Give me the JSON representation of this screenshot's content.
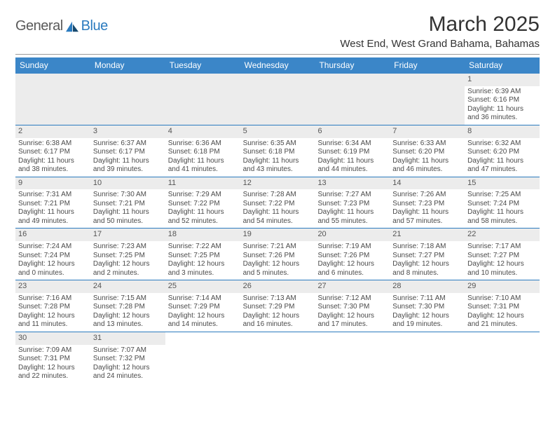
{
  "logo": {
    "text1": "General",
    "text2": "Blue"
  },
  "title": "March 2025",
  "location": "West End, West Grand Bahama, Bahamas",
  "colors": {
    "header_bg": "#3b86c8",
    "header_text": "#ffffff",
    "rule": "#2b7bbf",
    "daynum_bg": "#ececec",
    "logo_gray": "#5a5a5a",
    "logo_blue": "#2b7bbf"
  },
  "weekdays": [
    "Sunday",
    "Monday",
    "Tuesday",
    "Wednesday",
    "Thursday",
    "Friday",
    "Saturday"
  ],
  "leading_blanks": 6,
  "days": [
    {
      "n": 1,
      "sunrise": "6:39 AM",
      "sunset": "6:16 PM",
      "daylight": "11 hours and 36 minutes."
    },
    {
      "n": 2,
      "sunrise": "6:38 AM",
      "sunset": "6:17 PM",
      "daylight": "11 hours and 38 minutes."
    },
    {
      "n": 3,
      "sunrise": "6:37 AM",
      "sunset": "6:17 PM",
      "daylight": "11 hours and 39 minutes."
    },
    {
      "n": 4,
      "sunrise": "6:36 AM",
      "sunset": "6:18 PM",
      "daylight": "11 hours and 41 minutes."
    },
    {
      "n": 5,
      "sunrise": "6:35 AM",
      "sunset": "6:18 PM",
      "daylight": "11 hours and 43 minutes."
    },
    {
      "n": 6,
      "sunrise": "6:34 AM",
      "sunset": "6:19 PM",
      "daylight": "11 hours and 44 minutes."
    },
    {
      "n": 7,
      "sunrise": "6:33 AM",
      "sunset": "6:20 PM",
      "daylight": "11 hours and 46 minutes."
    },
    {
      "n": 8,
      "sunrise": "6:32 AM",
      "sunset": "6:20 PM",
      "daylight": "11 hours and 47 minutes."
    },
    {
      "n": 9,
      "sunrise": "7:31 AM",
      "sunset": "7:21 PM",
      "daylight": "11 hours and 49 minutes."
    },
    {
      "n": 10,
      "sunrise": "7:30 AM",
      "sunset": "7:21 PM",
      "daylight": "11 hours and 50 minutes."
    },
    {
      "n": 11,
      "sunrise": "7:29 AM",
      "sunset": "7:22 PM",
      "daylight": "11 hours and 52 minutes."
    },
    {
      "n": 12,
      "sunrise": "7:28 AM",
      "sunset": "7:22 PM",
      "daylight": "11 hours and 54 minutes."
    },
    {
      "n": 13,
      "sunrise": "7:27 AM",
      "sunset": "7:23 PM",
      "daylight": "11 hours and 55 minutes."
    },
    {
      "n": 14,
      "sunrise": "7:26 AM",
      "sunset": "7:23 PM",
      "daylight": "11 hours and 57 minutes."
    },
    {
      "n": 15,
      "sunrise": "7:25 AM",
      "sunset": "7:24 PM",
      "daylight": "11 hours and 58 minutes."
    },
    {
      "n": 16,
      "sunrise": "7:24 AM",
      "sunset": "7:24 PM",
      "daylight": "12 hours and 0 minutes."
    },
    {
      "n": 17,
      "sunrise": "7:23 AM",
      "sunset": "7:25 PM",
      "daylight": "12 hours and 2 minutes."
    },
    {
      "n": 18,
      "sunrise": "7:22 AM",
      "sunset": "7:25 PM",
      "daylight": "12 hours and 3 minutes."
    },
    {
      "n": 19,
      "sunrise": "7:21 AM",
      "sunset": "7:26 PM",
      "daylight": "12 hours and 5 minutes."
    },
    {
      "n": 20,
      "sunrise": "7:19 AM",
      "sunset": "7:26 PM",
      "daylight": "12 hours and 6 minutes."
    },
    {
      "n": 21,
      "sunrise": "7:18 AM",
      "sunset": "7:27 PM",
      "daylight": "12 hours and 8 minutes."
    },
    {
      "n": 22,
      "sunrise": "7:17 AM",
      "sunset": "7:27 PM",
      "daylight": "12 hours and 10 minutes."
    },
    {
      "n": 23,
      "sunrise": "7:16 AM",
      "sunset": "7:28 PM",
      "daylight": "12 hours and 11 minutes."
    },
    {
      "n": 24,
      "sunrise": "7:15 AM",
      "sunset": "7:28 PM",
      "daylight": "12 hours and 13 minutes."
    },
    {
      "n": 25,
      "sunrise": "7:14 AM",
      "sunset": "7:29 PM",
      "daylight": "12 hours and 14 minutes."
    },
    {
      "n": 26,
      "sunrise": "7:13 AM",
      "sunset": "7:29 PM",
      "daylight": "12 hours and 16 minutes."
    },
    {
      "n": 27,
      "sunrise": "7:12 AM",
      "sunset": "7:30 PM",
      "daylight": "12 hours and 17 minutes."
    },
    {
      "n": 28,
      "sunrise": "7:11 AM",
      "sunset": "7:30 PM",
      "daylight": "12 hours and 19 minutes."
    },
    {
      "n": 29,
      "sunrise": "7:10 AM",
      "sunset": "7:31 PM",
      "daylight": "12 hours and 21 minutes."
    },
    {
      "n": 30,
      "sunrise": "7:09 AM",
      "sunset": "7:31 PM",
      "daylight": "12 hours and 22 minutes."
    },
    {
      "n": 31,
      "sunrise": "7:07 AM",
      "sunset": "7:32 PM",
      "daylight": "12 hours and 24 minutes."
    }
  ],
  "labels": {
    "sunrise": "Sunrise:",
    "sunset": "Sunset:",
    "daylight": "Daylight:"
  }
}
